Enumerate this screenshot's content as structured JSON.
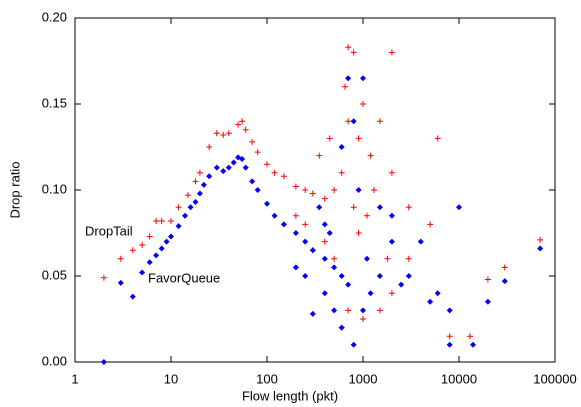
{
  "chart_data": {
    "type": "scatter",
    "xlabel": "Flow length (pkt)",
    "ylabel": "Drop ratio",
    "xscale": "log",
    "xlim": [
      1,
      100000
    ],
    "xticks": [
      1,
      10,
      100,
      1000,
      10000,
      100000
    ],
    "ylim": [
      0,
      0.2
    ],
    "yticks": [
      {
        "value": 0,
        "label": "0.00"
      },
      {
        "value": 0.05,
        "label": "0.05"
      },
      {
        "value": 0.1,
        "label": "0.10"
      },
      {
        "value": 0.15,
        "label": "0.15"
      },
      {
        "value": 0.2,
        "label": "0.20"
      }
    ],
    "annotations": [
      "DropTail",
      "FavorQueue"
    ],
    "series": [
      {
        "name": "DropTail",
        "color": "#ff0000",
        "marker": "plus",
        "x": [
          2,
          3,
          4,
          5,
          6,
          7,
          8,
          10,
          12,
          15,
          18,
          20,
          25,
          30,
          35,
          40,
          50,
          55,
          60,
          70,
          80,
          100,
          120,
          150,
          200,
          250,
          300,
          400,
          500,
          600,
          700,
          800,
          650,
          900,
          1000,
          1200,
          1500,
          2000,
          2000,
          3000,
          3000,
          5000,
          6000,
          8000,
          13000,
          20000,
          30000,
          70000,
          400,
          500,
          300,
          200,
          700,
          600,
          1000,
          1500,
          2000,
          350,
          450,
          800,
          900,
          1100,
          1300,
          250,
          700,
          1800
        ],
        "values": [
          0.049,
          0.06,
          0.065,
          0.068,
          0.073,
          0.082,
          0.082,
          0.082,
          0.09,
          0.097,
          0.105,
          0.11,
          0.125,
          0.133,
          0.132,
          0.133,
          0.138,
          0.14,
          0.135,
          0.128,
          0.122,
          0.115,
          0.11,
          0.108,
          0.102,
          0.1,
          0.098,
          0.095,
          0.1,
          0.11,
          0.183,
          0.18,
          0.16,
          0.13,
          0.15,
          0.12,
          0.14,
          0.18,
          0.11,
          0.09,
          0.06,
          0.08,
          0.13,
          0.015,
          0.015,
          0.048,
          0.055,
          0.071,
          0.07,
          0.06,
          0.065,
          0.085,
          0.03,
          0.02,
          0.025,
          0.03,
          0.04,
          0.12,
          0.13,
          0.09,
          0.075,
          0.085,
          0.1,
          0.08,
          0.14,
          0.06
        ]
      },
      {
        "name": "FavorQueue",
        "color": "#0000ff",
        "marker": "diamond",
        "x": [
          2,
          3,
          4,
          5,
          6,
          7,
          8,
          9,
          10,
          12,
          14,
          16,
          18,
          20,
          22,
          25,
          30,
          35,
          40,
          45,
          50,
          55,
          60,
          70,
          80,
          100,
          120,
          150,
          200,
          250,
          300,
          400,
          500,
          600,
          700,
          300,
          400,
          500,
          600,
          800,
          1000,
          1200,
          1500,
          2000,
          700,
          800,
          1000,
          600,
          900,
          1500,
          2000,
          3000,
          4000,
          5000,
          6000,
          8000,
          8000,
          10000,
          14000,
          20000,
          30000,
          70000,
          200,
          350,
          450,
          1100,
          2500,
          400,
          250
        ],
        "values": [
          0.0,
          0.046,
          0.038,
          0.052,
          0.058,
          0.062,
          0.066,
          0.07,
          0.073,
          0.079,
          0.085,
          0.09,
          0.093,
          0.098,
          0.103,
          0.108,
          0.113,
          0.111,
          0.113,
          0.116,
          0.119,
          0.118,
          0.113,
          0.105,
          0.1,
          0.092,
          0.085,
          0.08,
          0.075,
          0.07,
          0.065,
          0.06,
          0.055,
          0.05,
          0.045,
          0.028,
          0.04,
          0.03,
          0.02,
          0.01,
          0.03,
          0.04,
          0.05,
          0.07,
          0.165,
          0.14,
          0.165,
          0.125,
          0.1,
          0.09,
          0.085,
          0.05,
          0.07,
          0.035,
          0.04,
          0.03,
          0.01,
          0.09,
          0.01,
          0.035,
          0.047,
          0.066,
          0.055,
          0.09,
          0.075,
          0.06,
          0.045,
          0.08,
          0.05
        ]
      }
    ]
  }
}
